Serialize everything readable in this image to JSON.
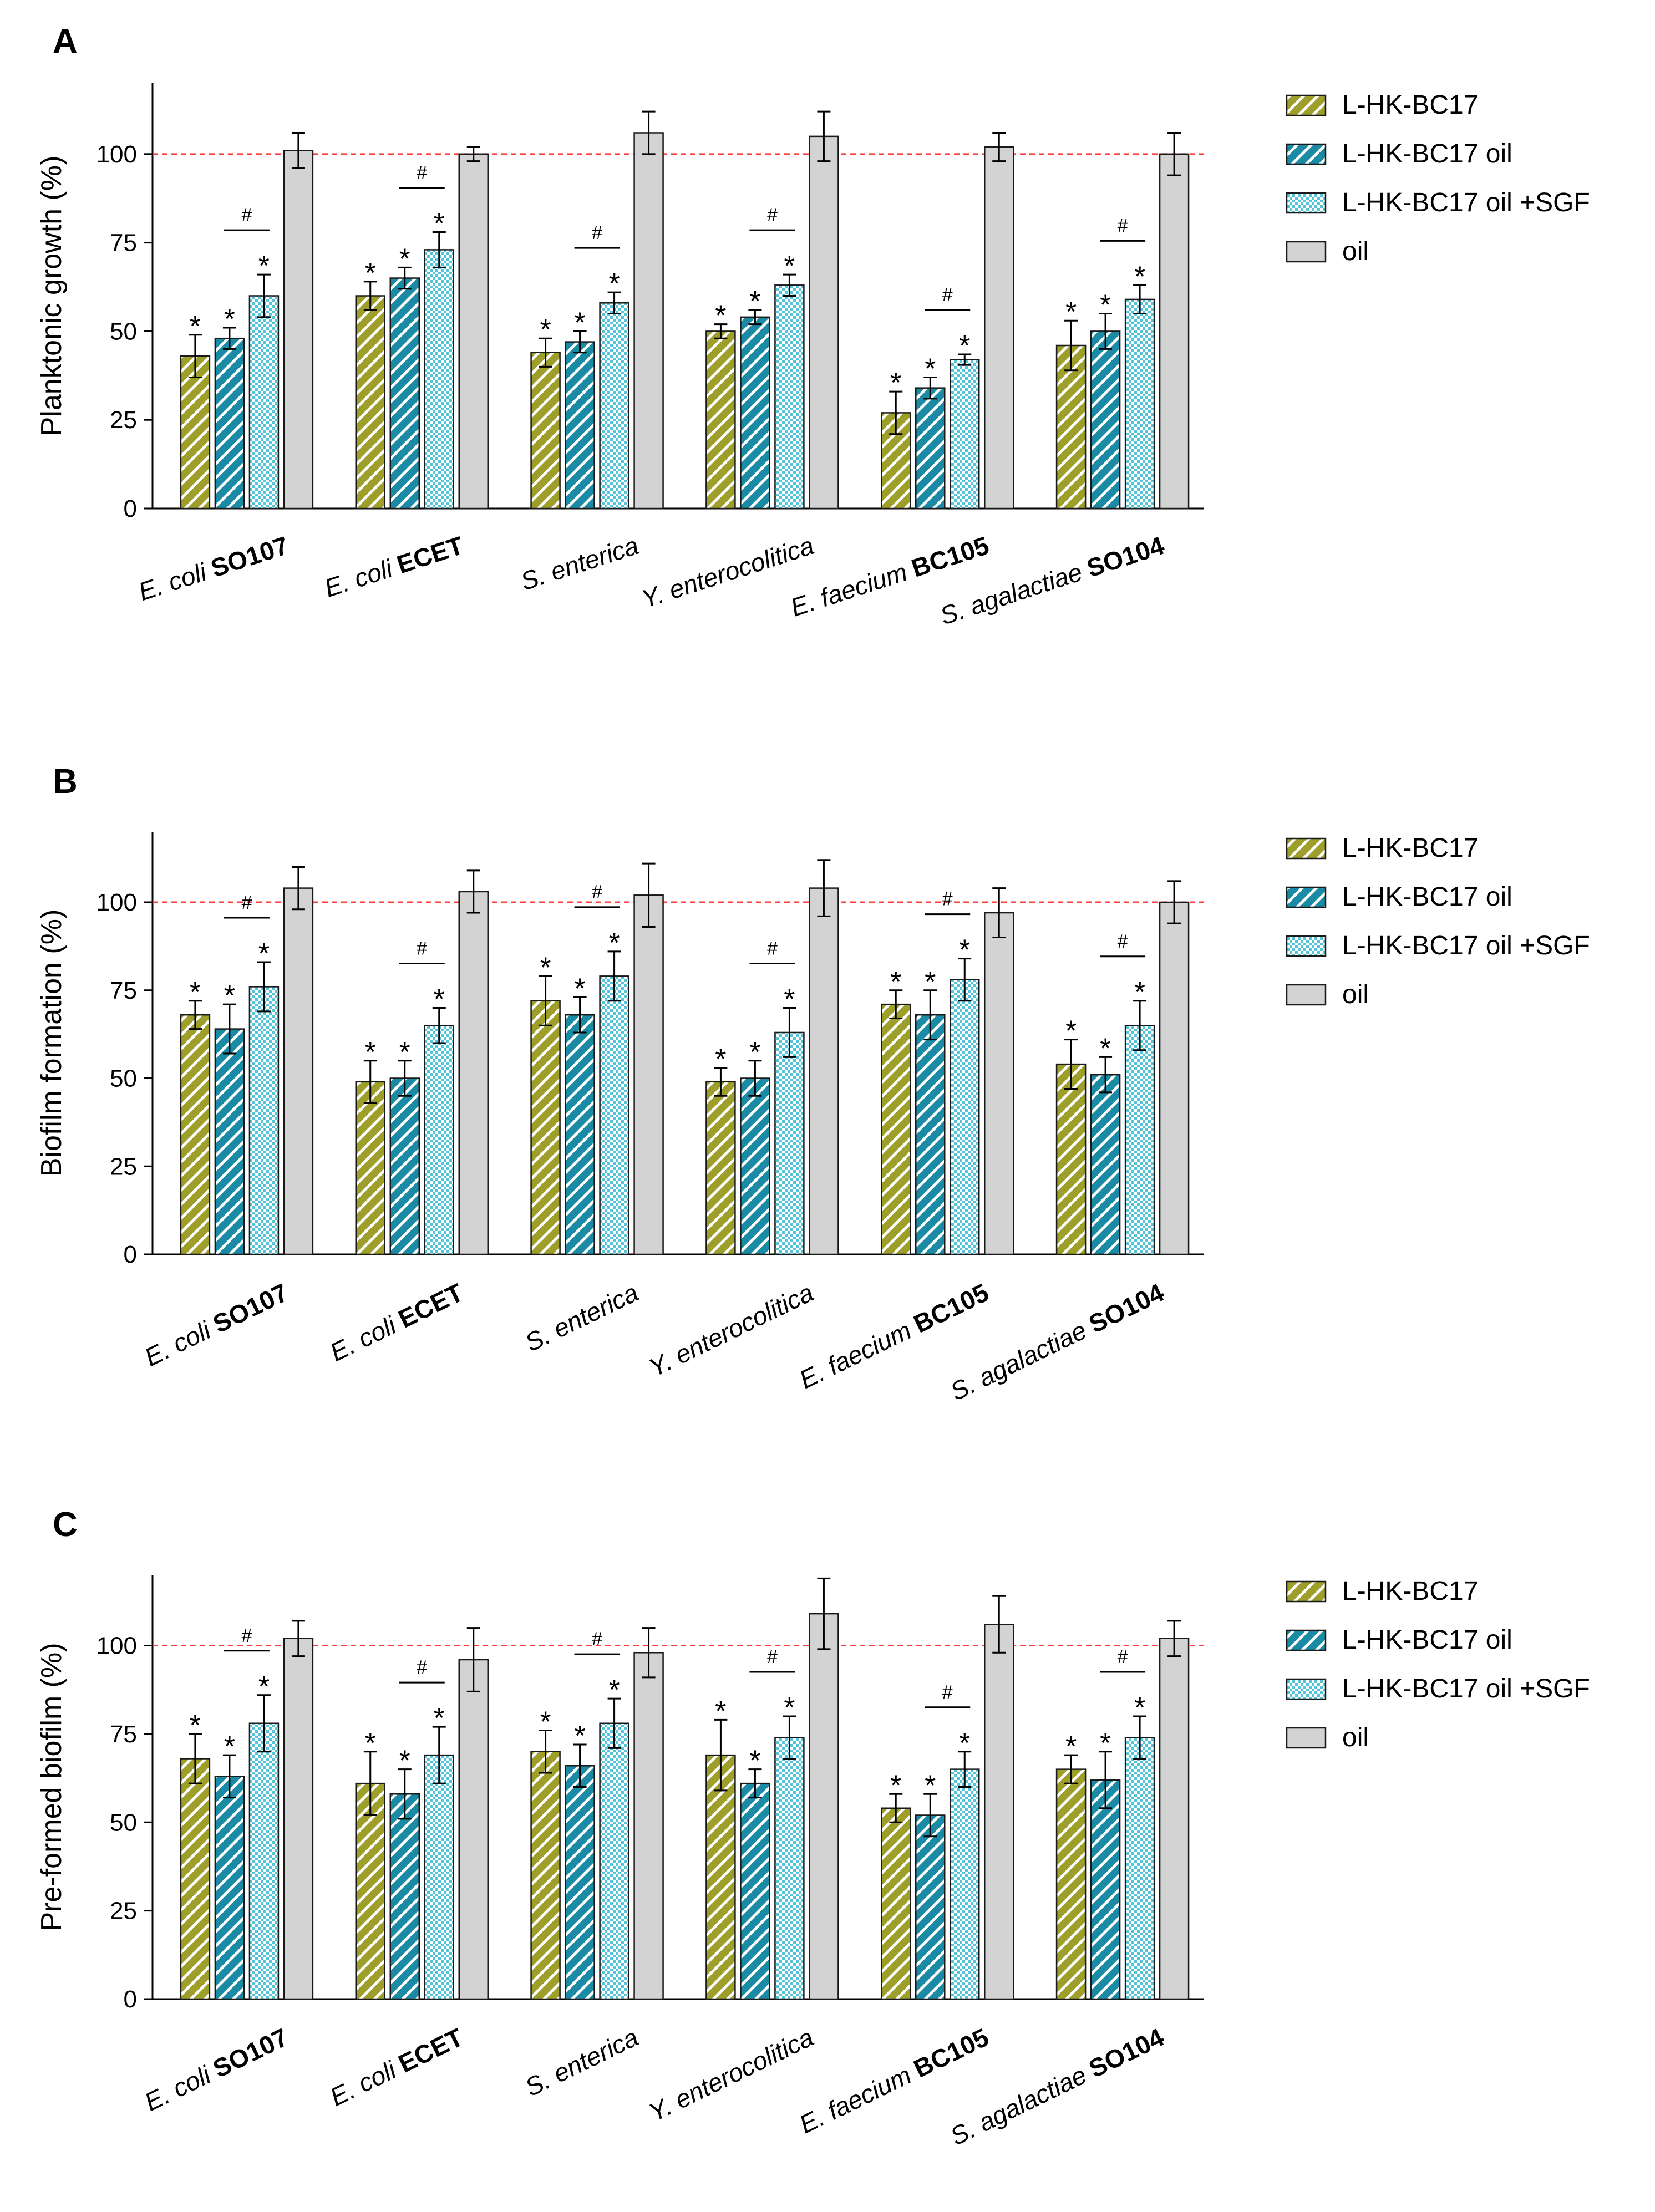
{
  "figure": {
    "legend_labels": [
      "L-HK-BC17",
      "L-HK-BC17 oil",
      "L-HK-BC17 oil +SGF",
      "oil"
    ],
    "series_colors": {
      "L-HK-BC17": "#9e9e2a",
      "L-HK-BC17 oil": "#1b8aa5",
      "L-HK-BC17 oil +SGF": "#7fd4e2",
      "oil": "#d3d3d3"
    },
    "reference_line_color": "#ff3b3b",
    "star_label": "*",
    "hash_label": "#"
  },
  "chart_data": [
    {
      "panel": "A",
      "type": "bar",
      "title": "",
      "ylabel": "Planktonic growth (%)",
      "xlabel": "",
      "ylim": [
        0,
        120
      ],
      "yticks": [
        0,
        25,
        50,
        75,
        100
      ],
      "reference_line": 100,
      "categories": [
        {
          "species": "E. coli",
          "strain": "SO107"
        },
        {
          "species": "E. coli",
          "strain": "ECET"
        },
        {
          "species": "S. enterica",
          "strain": ""
        },
        {
          "species": "Y. enterocolitica",
          "strain": ""
        },
        {
          "species": "E. faecium",
          "strain": "BC105"
        },
        {
          "species": "S. agalactiae",
          "strain": "SO104"
        }
      ],
      "series": [
        {
          "name": "L-HK-BC17",
          "values": [
            43,
            60,
            44,
            50,
            27,
            46
          ],
          "errors": [
            6,
            4,
            4,
            2,
            6,
            7
          ],
          "significant": [
            true,
            true,
            true,
            true,
            true,
            true
          ]
        },
        {
          "name": "L-HK-BC17 oil",
          "values": [
            48,
            65,
            47,
            54,
            34,
            50
          ],
          "errors": [
            3,
            3,
            3,
            2,
            3,
            5
          ],
          "significant": [
            true,
            true,
            true,
            true,
            true,
            true
          ]
        },
        {
          "name": "L-HK-BC17 oil +SGF",
          "values": [
            60,
            73,
            58,
            63,
            42,
            59
          ],
          "errors": [
            6,
            5,
            3,
            3,
            1.5,
            4
          ],
          "significant": [
            true,
            true,
            true,
            true,
            true,
            true
          ]
        },
        {
          "name": "oil",
          "values": [
            101,
            100,
            106,
            105,
            102,
            100
          ],
          "errors": [
            5,
            2,
            6,
            7,
            4,
            6
          ],
          "significant": [
            false,
            false,
            false,
            false,
            false,
            false
          ]
        }
      ],
      "hash_comparisons": [
        true,
        true,
        true,
        true,
        true,
        true
      ]
    },
    {
      "panel": "B",
      "type": "bar",
      "title": "",
      "ylabel": "Biofilm formation (%)",
      "xlabel": "",
      "ylim": [
        0,
        120
      ],
      "yticks": [
        0,
        25,
        50,
        75,
        100
      ],
      "reference_line": 100,
      "categories": [
        {
          "species": "E. coli",
          "strain": "SO107"
        },
        {
          "species": "E. coli",
          "strain": "ECET"
        },
        {
          "species": "S. enterica",
          "strain": ""
        },
        {
          "species": "Y. enterocolitica",
          "strain": ""
        },
        {
          "species": "E. faecium",
          "strain": "BC105"
        },
        {
          "species": "S. agalactiae",
          "strain": "SO104"
        }
      ],
      "series": [
        {
          "name": "L-HK-BC17",
          "values": [
            68,
            49,
            72,
            49,
            71,
            54
          ],
          "errors": [
            4,
            6,
            7,
            4,
            4,
            7
          ],
          "significant": [
            true,
            true,
            true,
            true,
            true,
            true
          ]
        },
        {
          "name": "L-HK-BC17 oil",
          "values": [
            64,
            50,
            68,
            50,
            68,
            51
          ],
          "errors": [
            7,
            5,
            5,
            5,
            7,
            5
          ],
          "significant": [
            true,
            true,
            true,
            true,
            true,
            true
          ]
        },
        {
          "name": "L-HK-BC17 oil +SGF",
          "values": [
            76,
            65,
            79,
            63,
            78,
            65
          ],
          "errors": [
            7,
            5,
            7,
            7,
            6,
            7
          ],
          "significant": [
            true,
            true,
            true,
            true,
            true,
            true
          ]
        },
        {
          "name": "oil",
          "values": [
            104,
            103,
            102,
            104,
            97,
            100
          ],
          "errors": [
            6,
            6,
            9,
            8,
            7,
            6
          ],
          "significant": [
            false,
            false,
            false,
            false,
            false,
            false
          ]
        }
      ],
      "hash_comparisons": [
        true,
        true,
        true,
        true,
        true,
        true
      ]
    },
    {
      "panel": "C",
      "type": "bar",
      "title": "",
      "ylabel": "Pre-formed biofilm (%)",
      "xlabel": "",
      "ylim": [
        0,
        120
      ],
      "yticks": [
        0,
        25,
        50,
        75,
        100
      ],
      "reference_line": 100,
      "categories": [
        {
          "species": "E. coli",
          "strain": "SO107"
        },
        {
          "species": "E. coli",
          "strain": "ECET"
        },
        {
          "species": "S. enterica",
          "strain": ""
        },
        {
          "species": "Y. enterocolitica",
          "strain": ""
        },
        {
          "species": "E. faecium",
          "strain": "BC105"
        },
        {
          "species": "S. agalactiae",
          "strain": "SO104"
        }
      ],
      "series": [
        {
          "name": "L-HK-BC17",
          "values": [
            68,
            61,
            70,
            69,
            54,
            65
          ],
          "errors": [
            7,
            9,
            6,
            10,
            4,
            4
          ],
          "significant": [
            true,
            true,
            true,
            true,
            true,
            true
          ]
        },
        {
          "name": "L-HK-BC17 oil",
          "values": [
            63,
            58,
            66,
            61,
            52,
            62
          ],
          "errors": [
            6,
            7,
            6,
            4,
            6,
            8
          ],
          "significant": [
            true,
            true,
            true,
            true,
            true,
            true
          ]
        },
        {
          "name": "L-HK-BC17 oil +SGF",
          "values": [
            78,
            69,
            78,
            74,
            65,
            74
          ],
          "errors": [
            8,
            8,
            7,
            6,
            5,
            6
          ],
          "significant": [
            true,
            true,
            true,
            true,
            true,
            true
          ]
        },
        {
          "name": "oil",
          "values": [
            102,
            96,
            98,
            109,
            106,
            102
          ],
          "errors": [
            5,
            9,
            7,
            10,
            8,
            5
          ],
          "significant": [
            false,
            false,
            false,
            false,
            false,
            false
          ]
        }
      ],
      "hash_comparisons": [
        true,
        true,
        true,
        true,
        true,
        true
      ]
    }
  ]
}
